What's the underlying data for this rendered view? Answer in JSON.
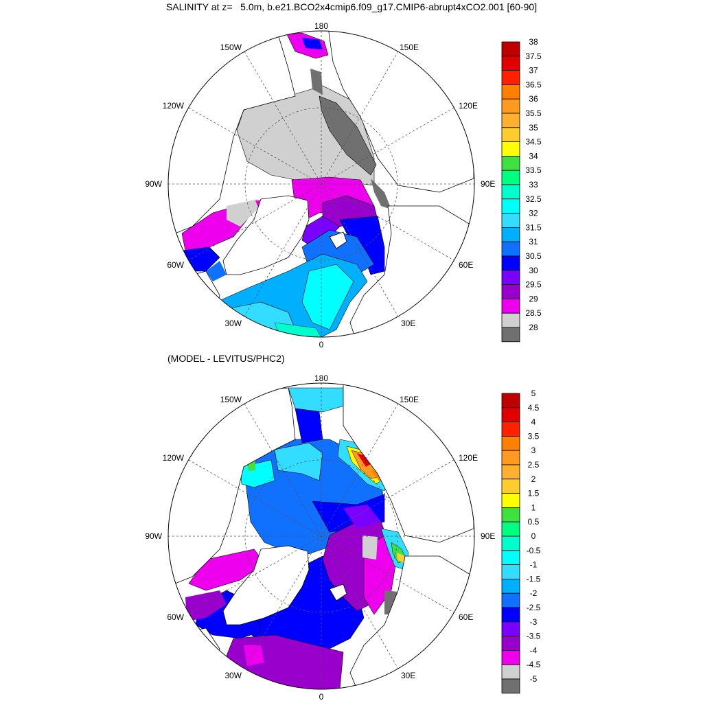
{
  "figure": {
    "title": "SALINITY at z=   5.0m, b.e21.BCO2x4cmip6.f09_g17.CMIP6-abrupt4xCO2.001 [60-90]",
    "bottom_title": "(MODEL - LEVITUS/PHC2)"
  },
  "maps": [
    {
      "projection": "north-polar-stereographic",
      "lat_range": "60-90",
      "lon_labels": [
        "180",
        "150E",
        "120E",
        "90E",
        "60E",
        "30E",
        "0",
        "30W",
        "60W",
        "90W",
        "120W",
        "150W"
      ]
    },
    {
      "projection": "north-polar-stereographic",
      "lat_range": "60-90",
      "lon_labels": [
        "180",
        "150E",
        "120E",
        "90E",
        "60E",
        "30E",
        "0",
        "30W",
        "60W",
        "90W",
        "120W",
        "150W"
      ]
    }
  ],
  "colorbars": [
    {
      "labels": [
        "38",
        "37.5",
        "37",
        "36.5",
        "36",
        "35.5",
        "35",
        "34.5",
        "34",
        "33.5",
        "33",
        "32.5",
        "32",
        "31.5",
        "31",
        "30.5",
        "30",
        "29.5",
        "29",
        "28.5",
        "28"
      ],
      "colors": [
        "#c00000",
        "#e00000",
        "#ff2000",
        "#ff8000",
        "#ff9a20",
        "#ffb030",
        "#ffcc30",
        "#ffff00",
        "#40e040",
        "#00ff80",
        "#00ffcc",
        "#00ffff",
        "#33ddff",
        "#00b0ff",
        "#1070ff",
        "#0000ff",
        "#7a00ff",
        "#9900cc",
        "#ee00ee",
        "#d0d0d0",
        "#707070"
      ]
    },
    {
      "labels": [
        "5",
        "4.5",
        "4",
        "3.5",
        "3",
        "2.5",
        "2",
        "1.5",
        "1",
        "0.5",
        "0",
        "-0.5",
        "-1",
        "-1.5",
        "-2",
        "-2.5",
        "-3",
        "-3.5",
        "-4",
        "-4.5",
        "-5"
      ],
      "colors": [
        "#c00000",
        "#e00000",
        "#ff2000",
        "#ff8000",
        "#ff9a20",
        "#ffb030",
        "#ffcc30",
        "#ffff00",
        "#40e040",
        "#00ff80",
        "#00ffcc",
        "#00ffff",
        "#33ddff",
        "#00b0ff",
        "#1070ff",
        "#0000ff",
        "#7a00ff",
        "#9900cc",
        "#ee00ee",
        "#d0d0d0",
        "#707070"
      ]
    }
  ]
}
